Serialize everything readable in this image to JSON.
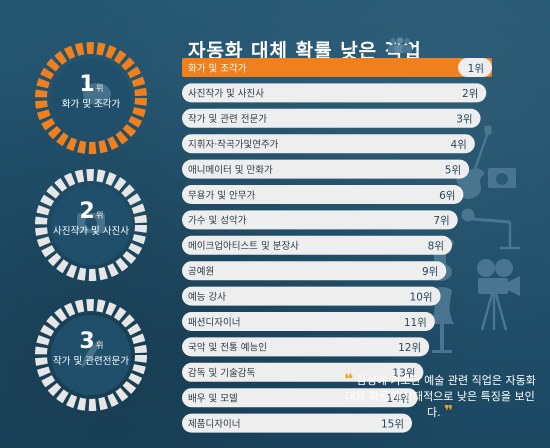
{
  "title": "자동화 대체 확률 낮은 직업",
  "colors": {
    "background": "#1f4f6b",
    "accent": "#f07f1e",
    "bar": "#eeeeee",
    "icon": "#4a7590"
  },
  "chart_data": {
    "type": "bar",
    "orientation": "horizontal",
    "title": "자동화 대체 확률 낮은 직업",
    "categories": [
      "화가 및 조각가",
      "사진작가 및 사진사",
      "작가 및 관련 전문가",
      "지휘자·작곡가및연주가",
      "애니메이터 및 만화가",
      "무용가 및 안무가",
      "가수 및 성악가",
      "메이크업아티스트 및 분장사",
      "공예원",
      "예능 강사",
      "패션디자이너",
      "국악 및 전통 예능인",
      "감독 및 기술감독",
      "배우 및 모델",
      "제품디자이너"
    ],
    "rank_labels": [
      "1위",
      "2위",
      "3위",
      "4위",
      "5위",
      "6위",
      "7위",
      "8위",
      "9위",
      "10위",
      "11위",
      "12위",
      "13위",
      "14위",
      "15위"
    ],
    "values": [
      1,
      2,
      3,
      4,
      5,
      6,
      7,
      8,
      9,
      10,
      11,
      12,
      13,
      14,
      15
    ],
    "highlight_index": 0
  },
  "badges": [
    {
      "number": "1",
      "suffix": "위",
      "name": "화가 및 조각가",
      "color": "#f07f1e",
      "icon": "palette-icon"
    },
    {
      "number": "2",
      "suffix": "위",
      "name": "사진작가 및 사진사",
      "color": "#e6e6e6",
      "icon": "camera-icon"
    },
    {
      "number": "3",
      "suffix": "위",
      "name": "작가 및 관련전문가",
      "color": "#e6e6e6",
      "icon": "quill-icon"
    }
  ],
  "quote": {
    "open": "❝",
    "text": "감성에 기초한 예술 관련 직업은 자동화 대체 확률이 상대적으로 낮은 특징을 보인다.",
    "close": "❞"
  }
}
